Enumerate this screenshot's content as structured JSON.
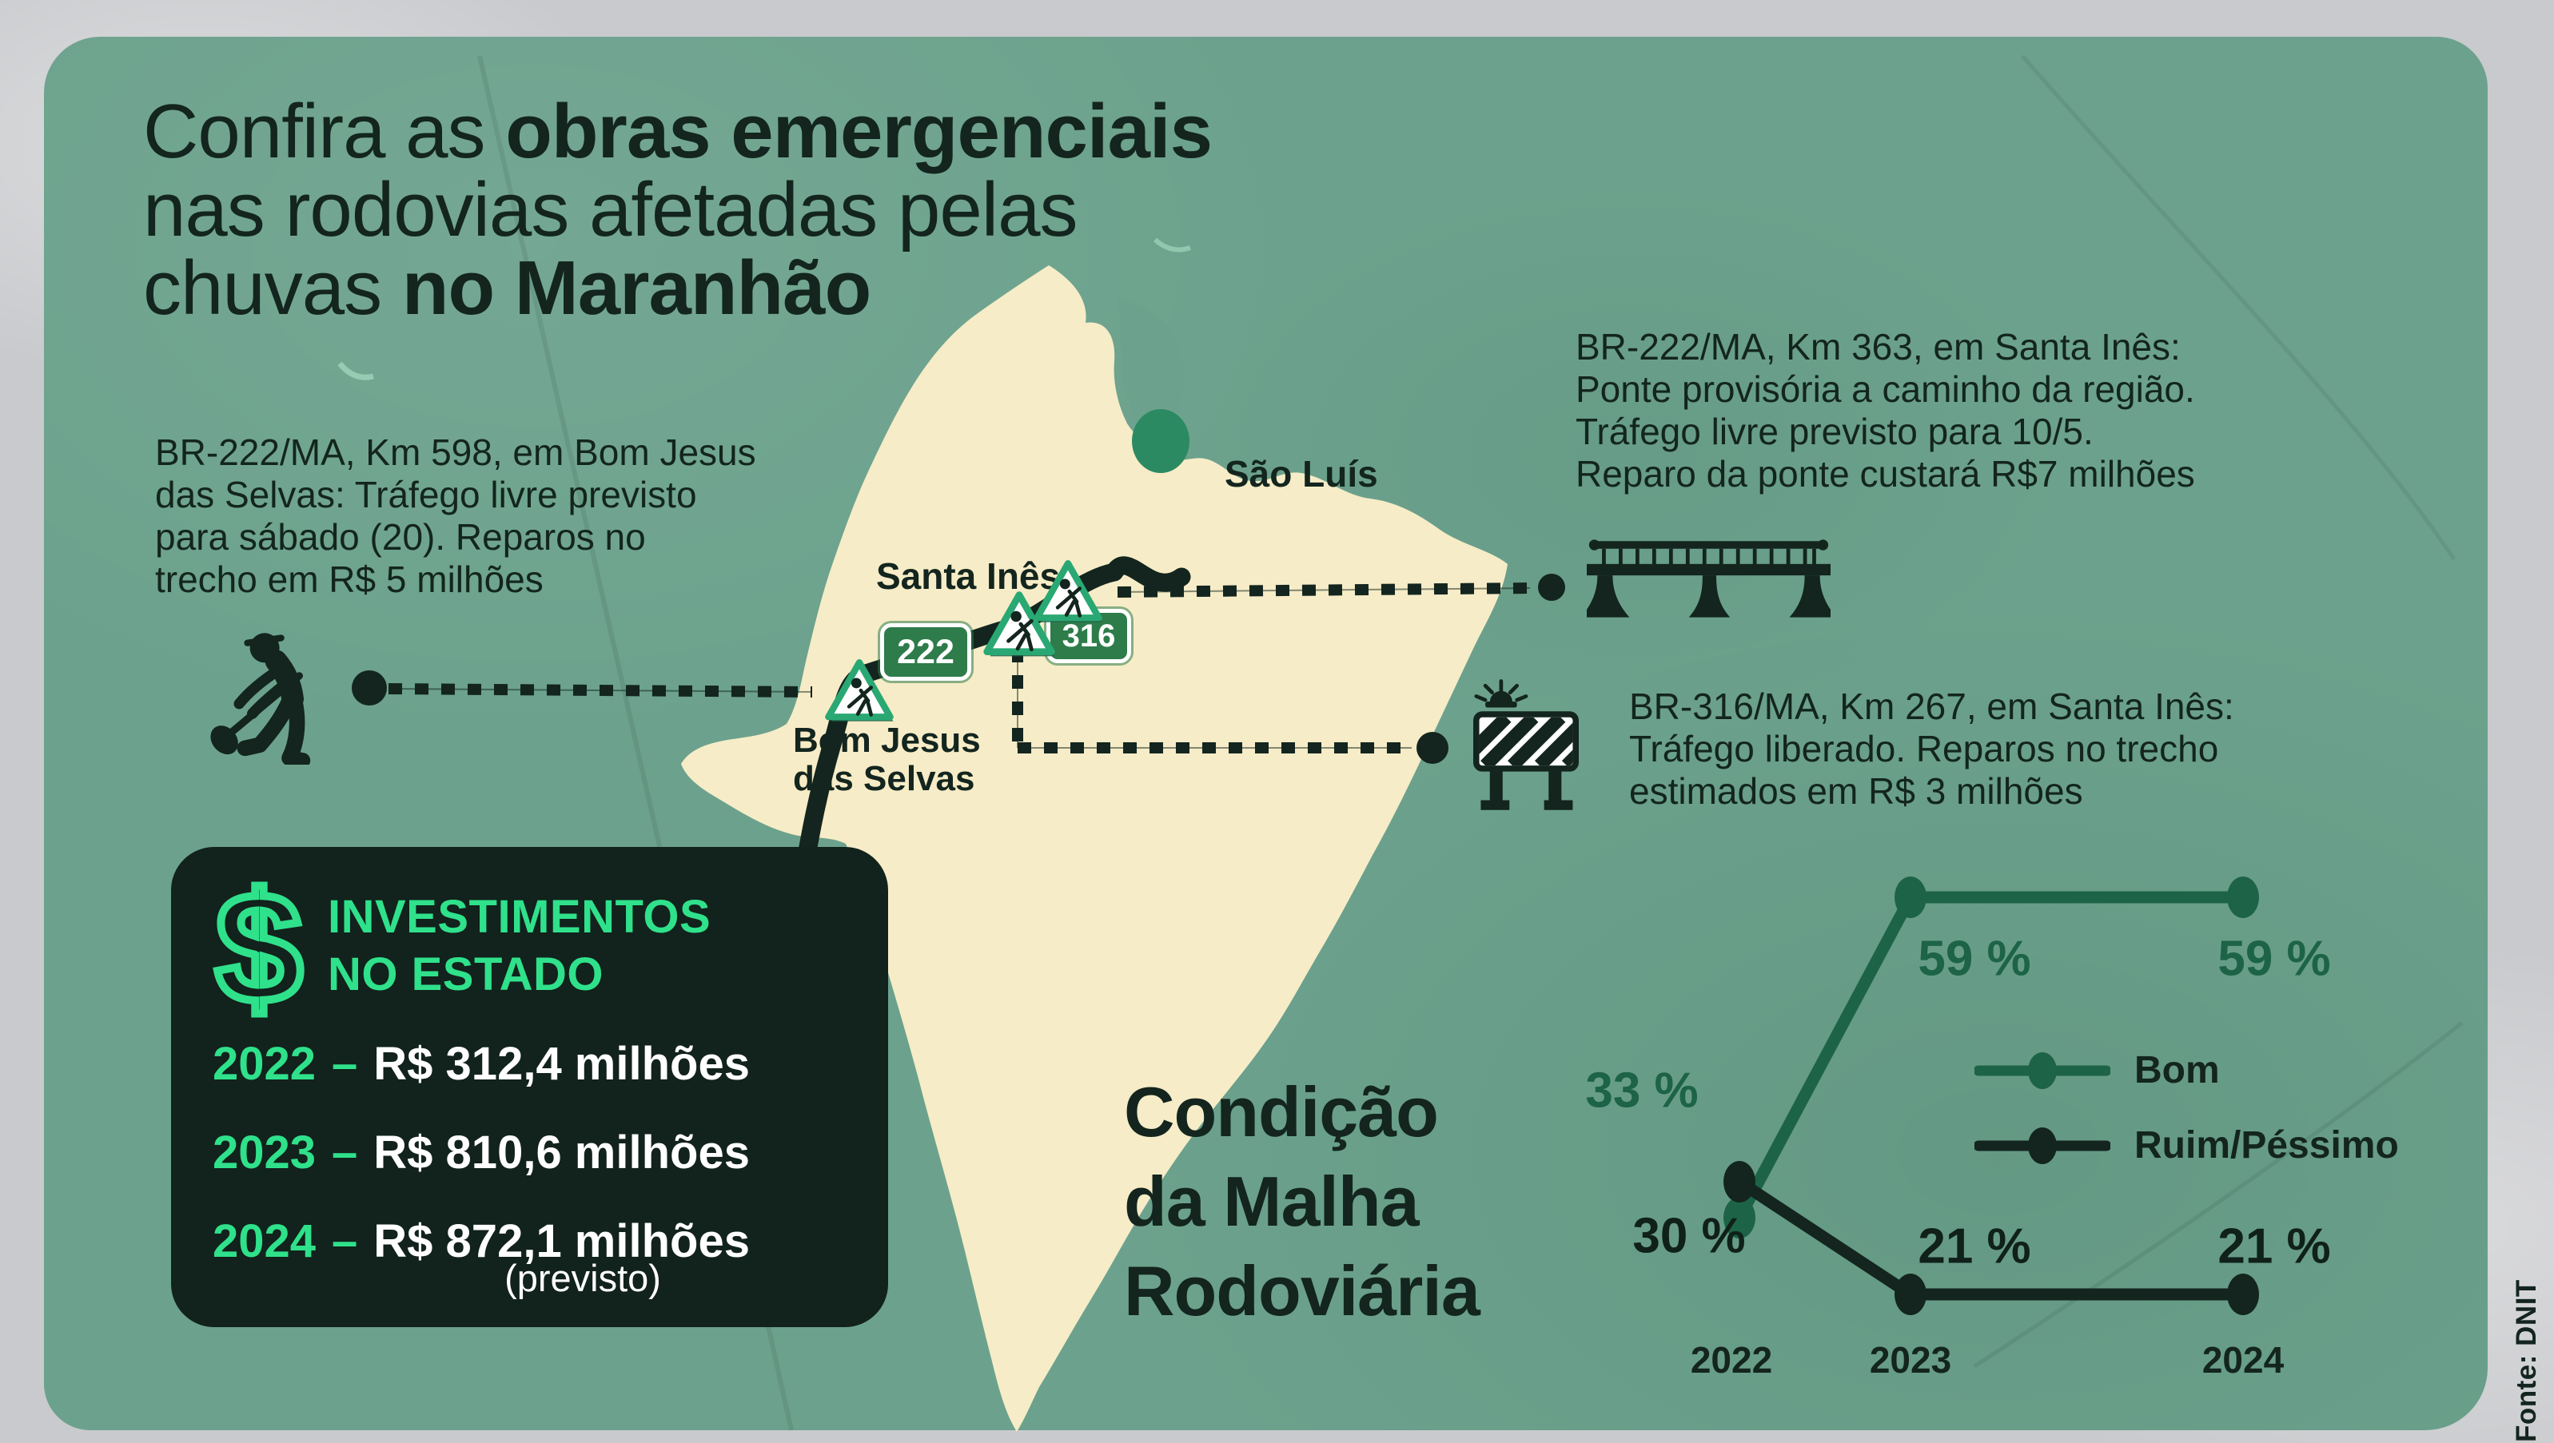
{
  "palette": {
    "outer_bg": "#c9cacd",
    "poster_green": "#6ca28d",
    "ink": "#13251e",
    "accent_green": "#2fe18b",
    "series_good_green": "#1d6347",
    "shield_green": "#2e7c4a",
    "sign_green": "#2aa873",
    "map_cream": "#f6ecc7",
    "box_dark": "#12221c",
    "city_dot_green": "#2c8a62"
  },
  "title": {
    "l1_regular": "Confira as ",
    "l1_bold": "obras emergenciais",
    "l2": "nas rodovias afetadas pelas",
    "l3_regular": "chuvas ",
    "l3_bold": "no Maranhão"
  },
  "callouts": {
    "bom_jesus": {
      "lines": [
        "BR-222/MA, Km 598, em Bom Jesus",
        "das Selvas: Tráfego livre previsto",
        "para sábado (20). Reparos no",
        "trecho em R$ 5 milhões"
      ]
    },
    "ponte": {
      "lines": [
        "BR-222/MA, Km 363, em Santa Inês:",
        "Ponte provisória a caminho da região.",
        "Tráfego livre previsto para 10/5.",
        "Reparo da ponte custará R$7 milhões"
      ]
    },
    "br316": {
      "lines": [
        "BR-316/MA, Km 267, em Santa Inês:",
        "Tráfego liberado. Reparos no trecho",
        "estimados em R$ 3 milhões"
      ]
    }
  },
  "map": {
    "city_sao_luis": "São Luís",
    "city_santa_ines": "Santa Inês",
    "city_bom_jesus_l1": "Bom Jesus",
    "city_bom_jesus_l2": "das Selvas",
    "shield_222": "222",
    "shield_316": "316"
  },
  "icons": {
    "worker": "road-worker-digging",
    "bridge": "bridge-silhouette",
    "barrier": "road-barrier-with-siren",
    "roadwork_sign": "roadwork-triangle-sign",
    "dollar": "dollar-outline"
  },
  "investments": {
    "icon": "$",
    "title_l1": "INVESTIMENTOS",
    "title_l2": "NO ESTADO",
    "rows": [
      {
        "year": "2022",
        "sep": "–",
        "value": "R$ 312,4 milhões"
      },
      {
        "year": "2023",
        "sep": "–",
        "value": "R$ 810,6 milhões"
      },
      {
        "year": "2024",
        "sep": "–",
        "value": "R$ 872,1 milhões"
      }
    ],
    "note": "(previsto)"
  },
  "chart_title": {
    "l1": "Condição",
    "l2": "da Malha",
    "l3": "Rodoviária"
  },
  "chart_data": {
    "type": "line",
    "categories": [
      "2022",
      "2023",
      "2024"
    ],
    "series": [
      {
        "name": "Bom",
        "values": [
          33,
          59,
          59
        ],
        "color": "#1d6347"
      },
      {
        "name": "Ruim/Péssimo",
        "values": [
          30,
          21,
          21
        ],
        "color": "#13251e"
      }
    ],
    "point_labels": {
      "bom": [
        "33 %",
        "59 %",
        "59 %"
      ],
      "ruim": [
        "30 %",
        "21 %",
        "21 %"
      ]
    },
    "title": "Condição da Malha Rodoviária",
    "xlabel": "",
    "ylabel": "",
    "ylim": [
      0,
      70
    ],
    "grid": false,
    "legend_position": "center-right"
  },
  "source": "Fonte: DNIT"
}
